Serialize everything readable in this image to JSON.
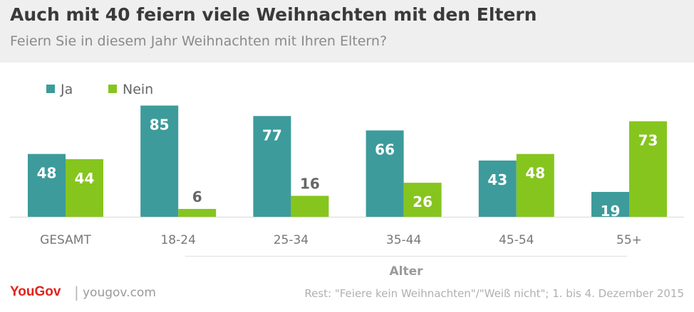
{
  "header": {
    "title": "Auch mit 40 feiern viele Weihnachten mit den Eltern",
    "subtitle": "Feiern Sie in diesem Jahr Weihnachten mit Ihren Eltern?"
  },
  "footer": {
    "brand": "YouGov",
    "separator": "|",
    "site": "yougov.com",
    "note": "Rest: \"Feiere kein Weihnachten\"/\"Weiß nicht\"; 1. bis 4. Dezember 2015"
  },
  "colors": {
    "ja": "#3d9b9b",
    "nein": "#86c51e",
    "label_inside": "#ffffff",
    "label_outside": "#666666",
    "axis": "#d8d8d8",
    "tick_text": "#777777",
    "group_label": "#9a9a9a"
  },
  "chart_data": {
    "type": "bar",
    "title": "Auch mit 40 feiern viele Weihnachten mit den Eltern",
    "subtitle": "Feiern Sie in diesem Jahr Weihnachten mit Ihren Eltern?",
    "categories": [
      "GESAMT",
      "18-24",
      "25-34",
      "35-44",
      "45-54",
      "55+"
    ],
    "series": [
      {
        "name": "Ja",
        "values": [
          48,
          85,
          77,
          66,
          43,
          19
        ]
      },
      {
        "name": "Nein",
        "values": [
          44,
          6,
          16,
          26,
          48,
          73
        ]
      }
    ],
    "group_label": "Alter",
    "ylim": [
      0,
      88
    ],
    "grid": false,
    "legend": "top-left"
  }
}
